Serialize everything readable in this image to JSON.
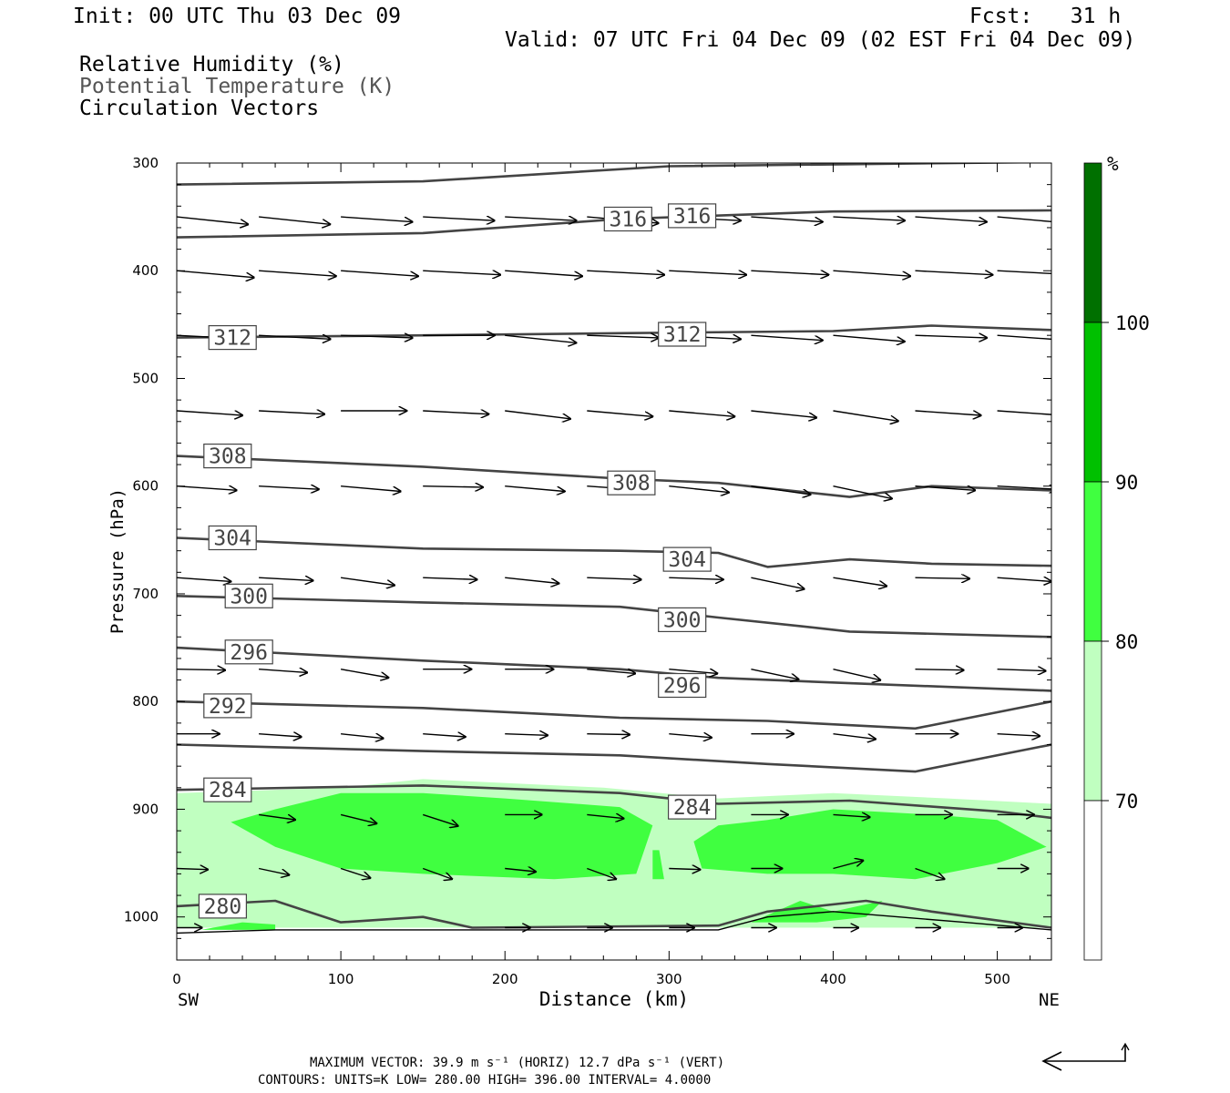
{
  "header": {
    "init": "Init: 00 UTC Thu 03 Dec 09",
    "fcst": "Fcst:   31 h",
    "valid": "Valid: 07 UTC Fri 04 Dec 09 (02 EST Fri 04 Dec 09)",
    "fields": [
      "Relative Humidity (%)",
      "Potential Temperature (K)",
      "Circulation Vectors"
    ]
  },
  "footer": {
    "line1": "MAXIMUM VECTOR:  39.9 m s⁻¹ (HORIZ)        12.7 dPa s⁻¹ (VERT)",
    "line2": "CONTOURS:  UNITS=K  LOW=  280.00       HIGH=  396.00       INTERVAL=    4.0000"
  },
  "colors": {
    "rh70": "#c0ffc0",
    "rh80": "#40ff40",
    "rh90": "#00c000",
    "rh100": "#007000",
    "contour": "#444444"
  },
  "chart_data": {
    "type": "cross-section",
    "xlabel": "Distance (km)",
    "ylabel": "Pressure (hPa)",
    "xlim": [
      0,
      533
    ],
    "ylim": [
      1040,
      300
    ],
    "x_ticks": [
      0,
      100,
      200,
      300,
      400,
      500
    ],
    "y_ticks": [
      300,
      400,
      500,
      600,
      700,
      800,
      900,
      1000
    ],
    "x_end_labels": {
      "left": "SW",
      "right": "NE"
    },
    "colorbar": {
      "unit": "%",
      "levels": [
        "70",
        "80",
        "90",
        "100"
      ],
      "colors": [
        "#ffffff",
        "#c0ffc0",
        "#40ff40",
        "#00c000",
        "#007000"
      ]
    },
    "theta_contours": [
      {
        "label": "",
        "points": [
          [
            0,
            320
          ],
          [
            150,
            317
          ],
          [
            300,
            303
          ],
          [
            533,
            299
          ]
        ]
      },
      {
        "label": "316",
        "points": [
          [
            0,
            369
          ],
          [
            150,
            365
          ],
          [
            270,
            352
          ],
          [
            400,
            345
          ],
          [
            533,
            344
          ]
        ]
      },
      {
        "label": "312",
        "points": [
          [
            0,
            462
          ],
          [
            150,
            460
          ],
          [
            270,
            458
          ],
          [
            400,
            456
          ],
          [
            460,
            451
          ],
          [
            533,
            455
          ]
        ]
      },
      {
        "label": "308",
        "points": [
          [
            0,
            572
          ],
          [
            150,
            582
          ],
          [
            270,
            593
          ],
          [
            330,
            597
          ],
          [
            410,
            610
          ],
          [
            460,
            600
          ],
          [
            533,
            604
          ]
        ]
      },
      {
        "label": "304",
        "points": [
          [
            0,
            648
          ],
          [
            150,
            658
          ],
          [
            270,
            660
          ],
          [
            330,
            662
          ],
          [
            360,
            675
          ],
          [
            410,
            668
          ],
          [
            460,
            672
          ],
          [
            533,
            674
          ]
        ]
      },
      {
        "label": "300",
        "points": [
          [
            0,
            702
          ],
          [
            150,
            708
          ],
          [
            270,
            712
          ],
          [
            330,
            722
          ],
          [
            380,
            730
          ],
          [
            410,
            735
          ],
          [
            533,
            740
          ]
        ]
      },
      {
        "label": "296",
        "points": [
          [
            0,
            750
          ],
          [
            150,
            762
          ],
          [
            270,
            770
          ],
          [
            330,
            778
          ],
          [
            410,
            783
          ],
          [
            533,
            790
          ]
        ]
      },
      {
        "label": "292",
        "points": [
          [
            0,
            800
          ],
          [
            150,
            806
          ],
          [
            270,
            815
          ],
          [
            360,
            818
          ],
          [
            450,
            825
          ],
          [
            533,
            800
          ]
        ]
      },
      {
        "label": "",
        "points": [
          [
            0,
            840
          ],
          [
            150,
            846
          ],
          [
            270,
            850
          ],
          [
            360,
            858
          ],
          [
            450,
            865
          ],
          [
            533,
            840
          ]
        ]
      },
      {
        "label": "284",
        "points": [
          [
            0,
            882
          ],
          [
            150,
            878
          ],
          [
            270,
            885
          ],
          [
            330,
            895
          ],
          [
            410,
            892
          ],
          [
            500,
            902
          ],
          [
            533,
            908
          ]
        ]
      },
      {
        "label": "280",
        "points": [
          [
            0,
            990
          ],
          [
            60,
            985
          ],
          [
            100,
            1005
          ],
          [
            150,
            1000
          ],
          [
            180,
            1010
          ],
          [
            330,
            1008
          ],
          [
            360,
            995
          ],
          [
            420,
            985
          ],
          [
            460,
            995
          ],
          [
            533,
            1010
          ]
        ]
      }
    ],
    "theta_label_positions": [
      {
        "text": "316",
        "x": 275,
        "p": 352
      },
      {
        "text": "316",
        "x": 314,
        "p": 349
      },
      {
        "text": "312",
        "x": 34,
        "p": 462
      },
      {
        "text": "312",
        "x": 308,
        "p": 459
      },
      {
        "text": "308",
        "x": 31,
        "p": 572
      },
      {
        "text": "308",
        "x": 277,
        "p": 597
      },
      {
        "text": "304",
        "x": 34,
        "p": 648
      },
      {
        "text": "304",
        "x": 311,
        "p": 668
      },
      {
        "text": "300",
        "x": 44,
        "p": 702
      },
      {
        "text": "300",
        "x": 308,
        "p": 724
      },
      {
        "text": "296",
        "x": 44,
        "p": 754
      },
      {
        "text": "296",
        "x": 308,
        "p": 785
      },
      {
        "text": "292",
        "x": 31,
        "p": 804
      },
      {
        "text": "284",
        "x": 31,
        "p": 882
      },
      {
        "text": "284",
        "x": 314,
        "p": 898
      },
      {
        "text": "280",
        "x": 28,
        "p": 990
      }
    ],
    "rh_regions": [
      {
        "level": "70-80",
        "points": [
          [
            0,
            885
          ],
          [
            100,
            880
          ],
          [
            150,
            872
          ],
          [
            260,
            880
          ],
          [
            330,
            890
          ],
          [
            400,
            885
          ],
          [
            470,
            890
          ],
          [
            533,
            895
          ],
          [
            533,
            1010
          ],
          [
            0,
            1010
          ]
        ]
      },
      {
        "level": "80-90",
        "points": [
          [
            33,
            912
          ],
          [
            60,
            900
          ],
          [
            100,
            885
          ],
          [
            150,
            885
          ],
          [
            200,
            890
          ],
          [
            270,
            898
          ],
          [
            290,
            915
          ],
          [
            280,
            960
          ],
          [
            230,
            965
          ],
          [
            150,
            960
          ],
          [
            100,
            955
          ],
          [
            60,
            935
          ]
        ]
      },
      {
        "level": "80-90",
        "points": [
          [
            315,
            930
          ],
          [
            330,
            915
          ],
          [
            360,
            910
          ],
          [
            400,
            900
          ],
          [
            460,
            905
          ],
          [
            500,
            910
          ],
          [
            530,
            935
          ],
          [
            500,
            950
          ],
          [
            450,
            965
          ],
          [
            400,
            960
          ],
          [
            360,
            960
          ],
          [
            320,
            955
          ]
        ]
      },
      {
        "level": "80-90",
        "points": [
          [
            290,
            938
          ],
          [
            294,
            938
          ],
          [
            297,
            965
          ],
          [
            290,
            965
          ]
        ]
      },
      {
        "level": "80-90",
        "points": [
          [
            15,
            1012
          ],
          [
            40,
            1005
          ],
          [
            60,
            1007
          ],
          [
            60,
            1012
          ]
        ]
      },
      {
        "level": "80-90",
        "points": [
          [
            350,
            1005
          ],
          [
            380,
            985
          ],
          [
            400,
            995
          ],
          [
            430,
            985
          ],
          [
            420,
            1000
          ],
          [
            390,
            1005
          ]
        ]
      }
    ],
    "vectors": [
      {
        "p": 350,
        "row": [
          [
            0,
            6
          ],
          [
            50,
            6
          ],
          [
            100,
            4
          ],
          [
            150,
            3
          ],
          [
            200,
            3
          ],
          [
            250,
            5
          ],
          [
            300,
            3
          ],
          [
            350,
            4
          ],
          [
            400,
            3
          ],
          [
            450,
            4
          ],
          [
            500,
            5
          ]
        ]
      },
      {
        "p": 400,
        "row": [
          [
            0,
            5
          ],
          [
            50,
            4
          ],
          [
            100,
            4
          ],
          [
            150,
            3
          ],
          [
            200,
            4
          ],
          [
            250,
            3
          ],
          [
            300,
            3
          ],
          [
            350,
            3
          ],
          [
            400,
            4
          ],
          [
            450,
            3
          ],
          [
            500,
            3
          ]
        ]
      },
      {
        "p": 460,
        "row": [
          [
            0,
            3
          ],
          [
            50,
            3
          ],
          [
            100,
            2
          ],
          [
            150,
            0
          ],
          [
            200,
            6
          ],
          [
            250,
            2
          ],
          [
            300,
            3
          ],
          [
            350,
            4
          ],
          [
            400,
            5
          ],
          [
            450,
            2
          ],
          [
            500,
            4
          ]
        ]
      },
      {
        "p": 530,
        "row": [
          [
            0,
            4
          ],
          [
            50,
            3
          ],
          [
            100,
            0
          ],
          [
            150,
            3
          ],
          [
            200,
            7
          ],
          [
            250,
            5
          ],
          [
            300,
            5
          ],
          [
            350,
            6
          ],
          [
            400,
            9
          ],
          [
            450,
            4
          ],
          [
            500,
            4
          ]
        ]
      },
      {
        "p": 600,
        "row": [
          [
            0,
            4
          ],
          [
            50,
            3
          ],
          [
            100,
            5
          ],
          [
            150,
            1
          ],
          [
            200,
            5
          ],
          [
            250,
            4
          ],
          [
            300,
            6
          ],
          [
            350,
            8
          ],
          [
            400,
            12
          ],
          [
            450,
            4
          ],
          [
            500,
            3
          ]
        ]
      },
      {
        "p": 685,
        "row": [
          [
            0,
            4
          ],
          [
            50,
            3
          ],
          [
            100,
            8
          ],
          [
            150,
            2
          ],
          [
            200,
            6
          ],
          [
            250,
            2
          ],
          [
            300,
            2
          ],
          [
            350,
            12
          ],
          [
            400,
            9
          ],
          [
            450,
            1
          ],
          [
            500,
            4
          ]
        ]
      },
      {
        "p": 770,
        "row": [
          [
            0,
            1
          ],
          [
            50,
            4
          ],
          [
            100,
            10
          ],
          [
            150,
            0
          ],
          [
            200,
            0
          ],
          [
            250,
            5
          ],
          [
            300,
            5
          ],
          [
            350,
            12
          ],
          [
            400,
            13
          ],
          [
            450,
            1
          ],
          [
            500,
            2
          ]
        ]
      },
      {
        "p": 830,
        "row": [
          [
            0,
            0
          ],
          [
            50,
            4
          ],
          [
            100,
            6
          ],
          [
            150,
            4
          ],
          [
            200,
            2
          ],
          [
            250,
            1
          ],
          [
            300,
            5
          ],
          [
            350,
            0
          ],
          [
            400,
            7
          ],
          [
            450,
            0
          ],
          [
            500,
            3
          ]
        ]
      },
      {
        "p": 905,
        "row": [
          [
            50,
            8
          ],
          [
            100,
            14
          ],
          [
            150,
            18
          ],
          [
            200,
            0
          ],
          [
            250,
            6
          ],
          [
            300,
            0
          ],
          [
            350,
            0
          ],
          [
            400,
            4
          ],
          [
            450,
            0
          ],
          [
            500,
            0
          ]
        ]
      },
      {
        "p": 955,
        "row": [
          [
            0,
            2
          ],
          [
            50,
            12
          ],
          [
            100,
            18
          ],
          [
            150,
            20
          ],
          [
            200,
            6
          ],
          [
            250,
            20
          ],
          [
            300,
            2
          ],
          [
            350,
            0
          ],
          [
            400,
            -15
          ],
          [
            450,
            20
          ],
          [
            500,
            0
          ]
        ]
      },
      {
        "p": 1010,
        "row": [
          [
            0,
            0
          ],
          [
            200,
            0
          ],
          [
            250,
            0
          ],
          [
            300,
            0
          ],
          [
            350,
            0
          ],
          [
            400,
            0
          ],
          [
            450,
            0
          ],
          [
            500,
            0
          ]
        ]
      }
    ]
  }
}
